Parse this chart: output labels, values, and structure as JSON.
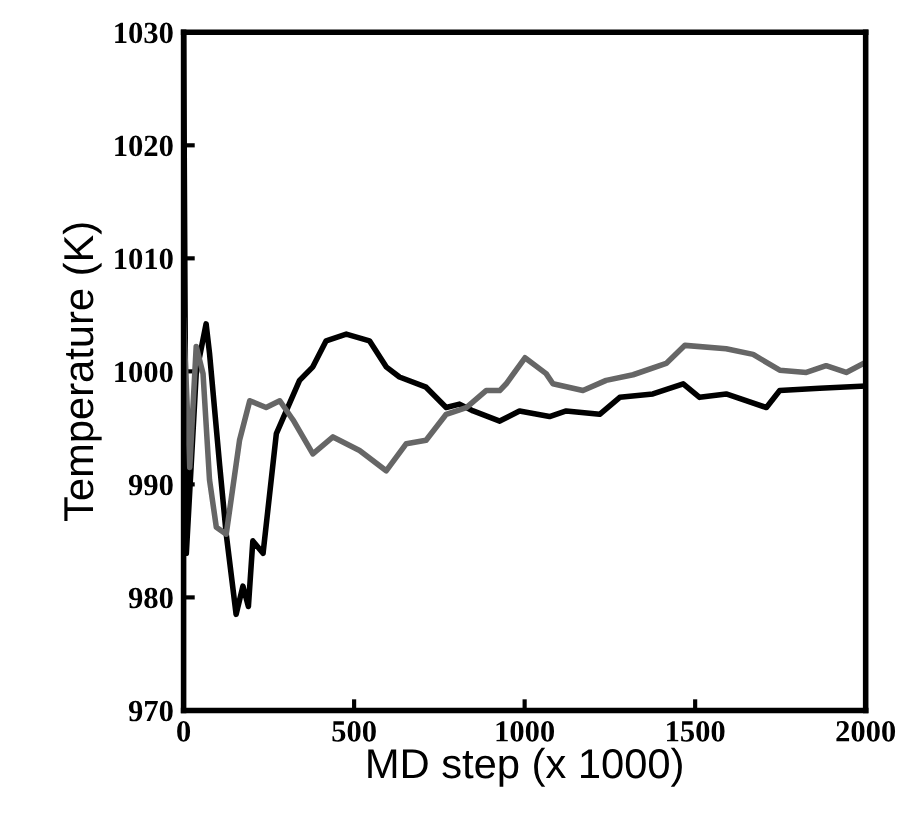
{
  "chart_data": {
    "type": "line",
    "xlabel": "MD step (x 1000)",
    "ylabel": "Temperature (K)",
    "xlim": [
      0,
      2000
    ],
    "ylim": [
      970,
      1030
    ],
    "xticks": [
      0,
      500,
      1000,
      1500,
      2000
    ],
    "yticks": [
      970,
      980,
      990,
      1000,
      1010,
      1020,
      1030
    ],
    "grid": false,
    "legend": false,
    "series": [
      {
        "color": "#000000",
        "x": [
          0,
          8,
          37,
          66,
          76,
          106,
          125,
          154,
          174,
          190,
          203,
          233,
          272,
          340,
          379,
          418,
          477,
          545,
          594,
          633,
          711,
          770,
          809,
          849,
          927,
          985,
          1073,
          1122,
          1220,
          1279,
          1376,
          1465,
          1513,
          1591,
          1709,
          1748,
          1865,
          2000
        ],
        "values": [
          1030,
          983.9,
          999.8,
          1004.2,
          1001.6,
          991.6,
          985.6,
          978.5,
          981,
          979.2,
          985,
          983.9,
          994.5,
          999.2,
          1000.4,
          1002.7,
          1003.3,
          1002.7,
          1000.4,
          999.5,
          998.6,
          996.8,
          997.1,
          996.5,
          995.6,
          996.5,
          996,
          996.5,
          996.2,
          997.7,
          998,
          998.9,
          997.7,
          998,
          996.8,
          998.3,
          998.5,
          998.7
        ]
      },
      {
        "color": "#666666",
        "x": [
          0,
          18,
          37,
          57,
          76,
          96,
          125,
          164,
          194,
          242,
          282,
          321,
          379,
          438,
          516,
          594,
          653,
          711,
          770,
          829,
          887,
          927,
          946,
          1001,
          1063,
          1083,
          1171,
          1239,
          1318,
          1415,
          1470,
          1591,
          1670,
          1748,
          1826,
          1884,
          1943,
          2000
        ],
        "values": [
          1004.5,
          991.5,
          1002.2,
          999.8,
          990.4,
          986.2,
          985.6,
          993.9,
          997.4,
          996.8,
          997.4,
          995.7,
          992.7,
          994.2,
          993,
          991.2,
          993.6,
          993.9,
          996.2,
          996.8,
          998.3,
          998.3,
          998.9,
          1001.2,
          999.8,
          998.9,
          998.3,
          999.2,
          999.7,
          1000.7,
          1002.3,
          1002,
          1001.5,
          1000.1,
          999.9,
          1000.5,
          999.9,
          1000.8
        ]
      }
    ]
  }
}
